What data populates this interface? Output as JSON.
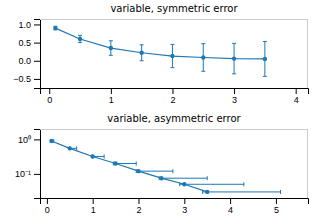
{
  "chart_data": [
    {
      "type": "line",
      "title": "variable, symmetric error",
      "x": [
        0.1,
        0.5,
        1.0,
        1.5,
        2.0,
        2.5,
        3.0,
        3.5
      ],
      "values": [
        0.9,
        0.6,
        0.35,
        0.22,
        0.13,
        0.09,
        0.06,
        0.05
      ],
      "yerr": [
        0.05,
        0.1,
        0.2,
        0.22,
        0.32,
        0.38,
        0.42,
        0.48
      ],
      "color": "#1f77b4",
      "marker": "circle",
      "line_style": "solid",
      "grid": false,
      "xlim": [
        -0.15,
        4.2
      ],
      "xticks": [
        0,
        1,
        2,
        3,
        4
      ],
      "ylim": [
        -0.75,
        1.15
      ],
      "yticks": [
        {
          "value": -0.5,
          "label": "−0.5"
        },
        {
          "value": 0.0,
          "label": "0.0"
        },
        {
          "value": 0.5,
          "label": "0.5"
        },
        {
          "value": 1.0,
          "label": "1.0"
        }
      ]
    },
    {
      "type": "line",
      "title": "variable, asymmetric error",
      "log": "y",
      "x": [
        0.1,
        0.5,
        1.0,
        1.5,
        2.0,
        2.5,
        3.0,
        3.5
      ],
      "values": [
        0.9,
        0.55,
        0.32,
        0.2,
        0.12,
        0.075,
        0.05,
        0.03
      ],
      "xerr_lo": [
        0.0,
        0.0,
        0.0,
        0.05,
        0.05,
        0.05,
        0.1,
        0.1
      ],
      "xerr_hi": [
        0.05,
        0.15,
        0.25,
        0.45,
        0.75,
        1.0,
        1.3,
        1.6
      ],
      "color": "#1f77b4",
      "marker": "circle",
      "line_style": "solid",
      "grid": false,
      "xlim": [
        -0.15,
        5.7
      ],
      "xticks": [
        0,
        1,
        2,
        3,
        4,
        5
      ],
      "ylim": [
        0.02,
        2.0
      ],
      "yticks": [
        {
          "value": 0.1,
          "label": "10⁻¹"
        },
        {
          "value": 1.0,
          "label": "10⁰"
        }
      ]
    }
  ]
}
